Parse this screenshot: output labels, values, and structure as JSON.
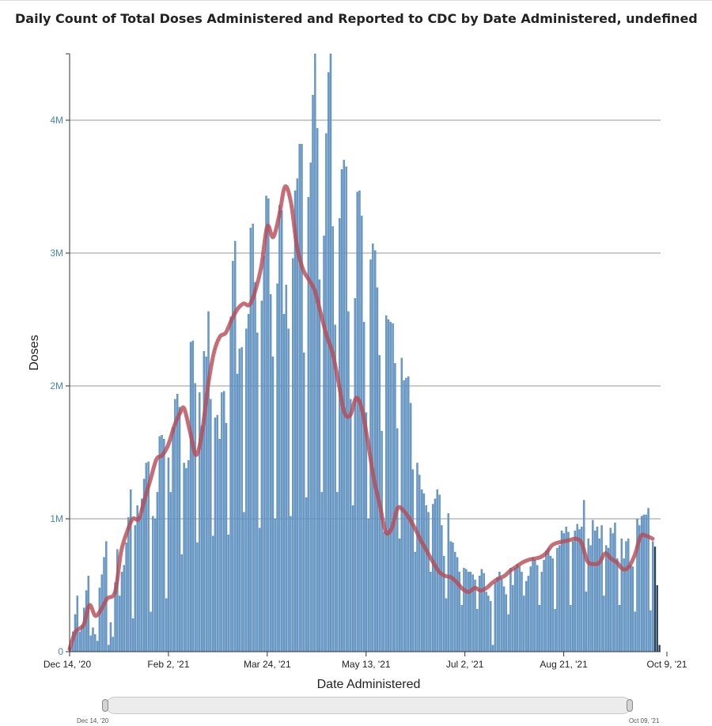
{
  "title": "Daily Count of Total Doses Administered and Reported to CDC by Date Administered, undefined",
  "slider": {
    "start_label": "Dec 14, '20",
    "end_label": "Oct 09, '21"
  },
  "colors": {
    "bar": "#6a9bc8",
    "bar_edge": "#3f74a6",
    "average_line": "#b84a52",
    "grid": "#999999",
    "tick_label": "#4b83b4"
  },
  "chart_data": {
    "type": "bar",
    "title": "Daily Count of Total Doses Administered and Reported to CDC by Date Administered, undefined",
    "xlabel": "Date Administered",
    "ylabel": "Doses",
    "x_start": "2020-12-14",
    "x_end": "2021-10-09",
    "ylim": [
      0,
      4500000
    ],
    "x_ticks": [
      {
        "date": "2020-12-14",
        "label": "Dec 14, '20"
      },
      {
        "date": "2021-02-02",
        "label": "Feb 2, '21"
      },
      {
        "date": "2021-03-24",
        "label": "Mar 24, '21"
      },
      {
        "date": "2021-05-13",
        "label": "May 13, '21"
      },
      {
        "date": "2021-07-02",
        "label": "Jul 2, '21"
      },
      {
        "date": "2021-08-21",
        "label": "Aug 21, '21"
      },
      {
        "date": "2021-10-09",
        "label": "Oct 9, '21"
      }
    ],
    "y_ticks": [
      {
        "value": 0,
        "label": "0"
      },
      {
        "value": 1000000,
        "label": "1M"
      },
      {
        "value": 2000000,
        "label": "2M"
      },
      {
        "value": 3000000,
        "label": "3M"
      },
      {
        "value": 4000000,
        "label": "4M"
      }
    ],
    "grid": "horizontal",
    "series": [
      {
        "type": "bar",
        "values": [
          30000,
          150000,
          280000,
          420000,
          150000,
          200000,
          330000,
          460000,
          570000,
          120000,
          180000,
          130000,
          80000,
          480000,
          580000,
          710000,
          830000,
          50000,
          220000,
          110000,
          520000,
          770000,
          420000,
          600000,
          650000,
          820000,
          1010000,
          1220000,
          250000,
          950000,
          1100000,
          1020000,
          1150000,
          1300000,
          1420000,
          1430000,
          300000,
          1020000,
          1000000,
          1200000,
          1620000,
          1630000,
          1600000,
          400000,
          1460000,
          1200000,
          1690000,
          1900000,
          1940000,
          1840000,
          730000,
          1420000,
          1380000,
          1440000,
          2330000,
          2340000,
          2020000,
          820000,
          1950000,
          1700000,
          2260000,
          2220000,
          2560000,
          1900000,
          870000,
          1760000,
          1780000,
          1600000,
          1950000,
          1960000,
          1720000,
          880000,
          2520000,
          2940000,
          3090000,
          2090000,
          2280000,
          2290000,
          1050000,
          2430000,
          2540000,
          3190000,
          3220000,
          2780000,
          2400000,
          930000,
          2640000,
          2980000,
          3430000,
          3410000,
          2690000,
          2220000,
          1000000,
          2770000,
          3360000,
          3320000,
          2540000,
          2760000,
          2430000,
          1020000,
          2960000,
          3470000,
          3560000,
          3820000,
          3820000,
          2250000,
          1160000,
          3420000,
          3680000,
          4190000,
          4500000,
          3940000,
          2800000,
          1200000,
          3130000,
          3900000,
          4360000,
          4500000,
          3200000,
          2460000,
          1200000,
          3260000,
          3630000,
          3700000,
          3650000,
          2560000,
          1900000,
          1100000,
          2660000,
          3460000,
          3470000,
          3280000,
          2480000,
          1800000,
          1000000,
          2950000,
          3070000,
          3020000,
          2740000,
          2230000,
          1660000,
          900000,
          2530000,
          2500000,
          2480000,
          2470000,
          2170000,
          1680000,
          850000,
          2210000,
          2040000,
          2060000,
          2070000,
          1870000,
          1370000,
          750000,
          1420000,
          1330000,
          1220000,
          1190000,
          1100000,
          1050000,
          600000,
          1110000,
          1150000,
          1220000,
          1180000,
          950000,
          720000,
          400000,
          1040000,
          830000,
          820000,
          750000,
          710000,
          600000,
          350000,
          630000,
          620000,
          600000,
          600000,
          580000,
          540000,
          320000,
          570000,
          620000,
          590000,
          450000,
          420000,
          380000,
          50000,
          520000,
          560000,
          600000,
          550000,
          490000,
          430000,
          280000,
          630000,
          500000,
          630000,
          660000,
          640000,
          600000,
          420000,
          530000,
          570000,
          640000,
          710000,
          690000,
          650000,
          350000,
          600000,
          690000,
          760000,
          780000,
          720000,
          700000,
          320000,
          780000,
          800000,
          910000,
          890000,
          940000,
          900000,
          350000,
          830000,
          910000,
          960000,
          920000,
          940000,
          1140000,
          450000,
          850000,
          800000,
          990000,
          910000,
          940000,
          850000,
          950000,
          420000,
          800000,
          780000,
          930000,
          890000,
          970000,
          700000,
          350000,
          850000,
          700000,
          830000,
          850000,
          650000,
          640000,
          300000,
          1000000,
          950000,
          1020000,
          1030000,
          1030000,
          1080000,
          310000,
          830000,
          790000,
          500000,
          50000
        ]
      },
      {
        "type": "line",
        "note_free": true,
        "points": [
          [
            "2020-12-14",
            20000
          ],
          [
            "2020-12-17",
            150000
          ],
          [
            "2020-12-21",
            200000
          ],
          [
            "2020-12-24",
            350000
          ],
          [
            "2020-12-27",
            270000
          ],
          [
            "2020-12-30",
            320000
          ],
          [
            "2021-01-02",
            400000
          ],
          [
            "2021-01-06",
            450000
          ],
          [
            "2021-01-09",
            750000
          ],
          [
            "2021-01-12",
            900000
          ],
          [
            "2021-01-15",
            1000000
          ],
          [
            "2021-01-18",
            1000000
          ],
          [
            "2021-01-21",
            1150000
          ],
          [
            "2021-01-24",
            1300000
          ],
          [
            "2021-01-27",
            1450000
          ],
          [
            "2021-01-30",
            1480000
          ],
          [
            "2021-02-02",
            1560000
          ],
          [
            "2021-02-05",
            1700000
          ],
          [
            "2021-02-08",
            1800000
          ],
          [
            "2021-02-10",
            1830000
          ],
          [
            "2021-02-13",
            1650000
          ],
          [
            "2021-02-16",
            1480000
          ],
          [
            "2021-02-19",
            1650000
          ],
          [
            "2021-02-22",
            2000000
          ],
          [
            "2021-02-25",
            2250000
          ],
          [
            "2021-02-28",
            2370000
          ],
          [
            "2021-03-03",
            2400000
          ],
          [
            "2021-03-06",
            2500000
          ],
          [
            "2021-03-09",
            2580000
          ],
          [
            "2021-03-12",
            2620000
          ],
          [
            "2021-03-15",
            2610000
          ],
          [
            "2021-03-18",
            2720000
          ],
          [
            "2021-03-21",
            2900000
          ],
          [
            "2021-03-24",
            3200000
          ],
          [
            "2021-03-27",
            3120000
          ],
          [
            "2021-03-30",
            3280000
          ],
          [
            "2021-04-02",
            3500000
          ],
          [
            "2021-04-05",
            3380000
          ],
          [
            "2021-04-08",
            3050000
          ],
          [
            "2021-04-11",
            2880000
          ],
          [
            "2021-04-14",
            2800000
          ],
          [
            "2021-04-17",
            2720000
          ],
          [
            "2021-04-20",
            2550000
          ],
          [
            "2021-04-23",
            2380000
          ],
          [
            "2021-04-26",
            2250000
          ],
          [
            "2021-04-29",
            2030000
          ],
          [
            "2021-05-02",
            1800000
          ],
          [
            "2021-05-05",
            1780000
          ],
          [
            "2021-05-08",
            1910000
          ],
          [
            "2021-05-11",
            1820000
          ],
          [
            "2021-05-14",
            1570000
          ],
          [
            "2021-05-17",
            1300000
          ],
          [
            "2021-05-20",
            1100000
          ],
          [
            "2021-05-23",
            900000
          ],
          [
            "2021-05-26",
            930000
          ],
          [
            "2021-05-29",
            1080000
          ],
          [
            "2021-06-01",
            1060000
          ],
          [
            "2021-06-04",
            1000000
          ],
          [
            "2021-06-07",
            920000
          ],
          [
            "2021-06-10",
            830000
          ],
          [
            "2021-06-13",
            750000
          ],
          [
            "2021-06-16",
            670000
          ],
          [
            "2021-06-19",
            600000
          ],
          [
            "2021-06-22",
            570000
          ],
          [
            "2021-06-25",
            560000
          ],
          [
            "2021-06-28",
            520000
          ],
          [
            "2021-07-01",
            470000
          ],
          [
            "2021-07-04",
            450000
          ],
          [
            "2021-07-07",
            480000
          ],
          [
            "2021-07-10",
            460000
          ],
          [
            "2021-07-13",
            480000
          ],
          [
            "2021-07-16",
            520000
          ],
          [
            "2021-07-19",
            550000
          ],
          [
            "2021-07-22",
            570000
          ],
          [
            "2021-07-25",
            610000
          ],
          [
            "2021-07-28",
            640000
          ],
          [
            "2021-07-31",
            670000
          ],
          [
            "2021-08-03",
            690000
          ],
          [
            "2021-08-06",
            700000
          ],
          [
            "2021-08-09",
            710000
          ],
          [
            "2021-08-12",
            740000
          ],
          [
            "2021-08-15",
            800000
          ],
          [
            "2021-08-18",
            820000
          ],
          [
            "2021-08-21",
            830000
          ],
          [
            "2021-08-24",
            840000
          ],
          [
            "2021-08-27",
            850000
          ],
          [
            "2021-08-30",
            820000
          ],
          [
            "2021-09-02",
            680000
          ],
          [
            "2021-09-05",
            660000
          ],
          [
            "2021-09-08",
            670000
          ],
          [
            "2021-09-11",
            740000
          ],
          [
            "2021-09-14",
            700000
          ],
          [
            "2021-09-17",
            670000
          ],
          [
            "2021-09-20",
            620000
          ],
          [
            "2021-09-23",
            640000
          ],
          [
            "2021-09-26",
            730000
          ],
          [
            "2021-09-29",
            870000
          ],
          [
            "2021-10-02",
            870000
          ],
          [
            "2021-10-05",
            850000
          ]
        ]
      }
    ]
  }
}
